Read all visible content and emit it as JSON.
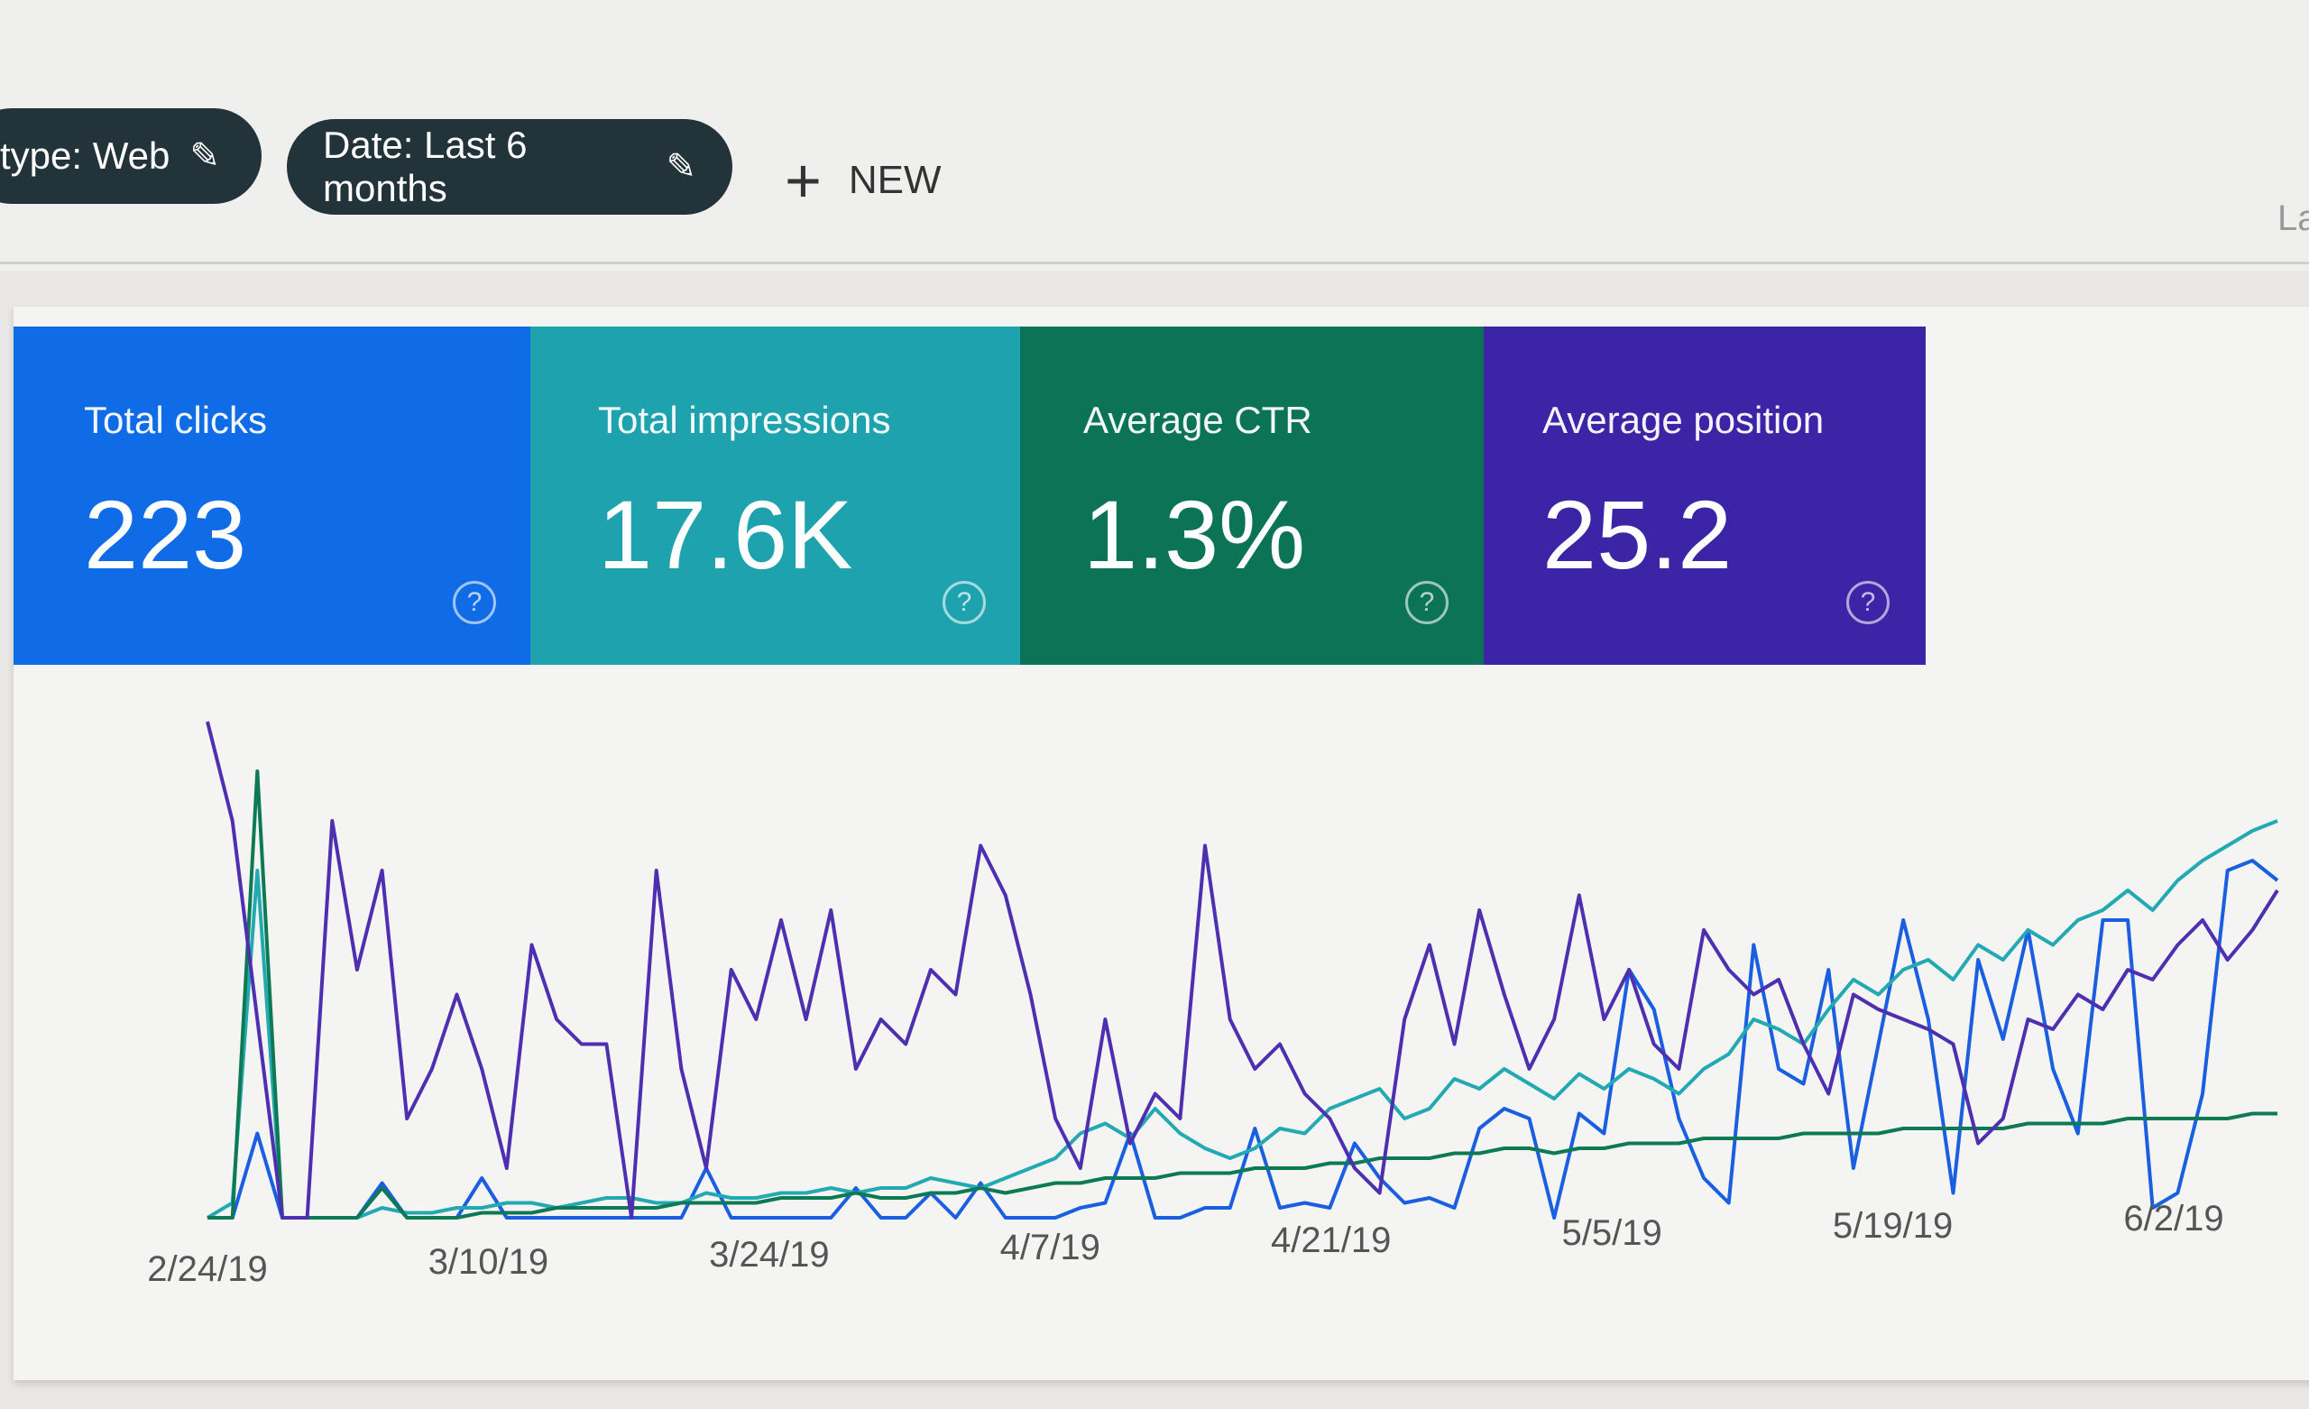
{
  "filters": [
    {
      "label": "type: Web",
      "icon": "pencil-icon"
    },
    {
      "label": "Date: Last 6 months",
      "icon": "pencil-icon"
    }
  ],
  "new_button": {
    "icon": "plus-icon",
    "label": "NEW"
  },
  "clipped_text": "La",
  "metrics": [
    {
      "label": "Total clicks",
      "value": "223",
      "color": "#0f6be6"
    },
    {
      "label": "Total impressions",
      "value": "17.6K",
      "color": "#1ea3ae"
    },
    {
      "label": "Average CTR",
      "value": "1.3%",
      "color": "#0c7456"
    },
    {
      "label": "Average position",
      "value": "25.2",
      "color": "#3c24a6"
    }
  ],
  "help_icon": "?",
  "chart_data": {
    "type": "line",
    "x_tick_labels": [
      "2/24/19",
      "3/10/19",
      "3/24/19",
      "4/7/19",
      "4/21/19",
      "5/5/19",
      "5/19/19",
      "6/2/19"
    ],
    "grid": false,
    "legend": "none",
    "series": [
      {
        "key": "clicks",
        "color": "#1a5fe0",
        "values": [
          0,
          0,
          17,
          0,
          0,
          0,
          0,
          7,
          0,
          0,
          0,
          8,
          0,
          0,
          0,
          0,
          0,
          0,
          0,
          0,
          10,
          0,
          0,
          0,
          0,
          0,
          6,
          0,
          0,
          5,
          0,
          7,
          0,
          0,
          0,
          2,
          3,
          17,
          0,
          0,
          2,
          2,
          18,
          2,
          3,
          2,
          15,
          8,
          3,
          4,
          2,
          18,
          22,
          20,
          0,
          21,
          17,
          50,
          42,
          20,
          8,
          3,
          55,
          30,
          27,
          50,
          10,
          35,
          60,
          40,
          5,
          52,
          36,
          58,
          30,
          17,
          60,
          60,
          2,
          5,
          25,
          70,
          72,
          68
        ]
      },
      {
        "key": "impressions",
        "color": "#23a9b2",
        "values": [
          0,
          3,
          70,
          0,
          0,
          0,
          0,
          2,
          1,
          1,
          2,
          2,
          3,
          3,
          2,
          3,
          4,
          4,
          3,
          3,
          5,
          4,
          4,
          5,
          5,
          6,
          5,
          6,
          6,
          8,
          7,
          6,
          8,
          10,
          12,
          17,
          19,
          16,
          22,
          17,
          14,
          12,
          14,
          18,
          17,
          22,
          24,
          26,
          20,
          22,
          28,
          26,
          30,
          27,
          24,
          29,
          26,
          30,
          28,
          25,
          30,
          33,
          40,
          38,
          35,
          42,
          48,
          45,
          50,
          52,
          48,
          55,
          52,
          58,
          55,
          60,
          62,
          66,
          62,
          68,
          72,
          75,
          78,
          80
        ]
      },
      {
        "key": "ctr",
        "color": "#0e7a55",
        "values": [
          0,
          0,
          90,
          0,
          0,
          0,
          0,
          6,
          0,
          0,
          0,
          1,
          1,
          1,
          2,
          2,
          2,
          2,
          2,
          3,
          3,
          3,
          3,
          4,
          4,
          4,
          5,
          4,
          4,
          5,
          5,
          6,
          5,
          6,
          7,
          7,
          8,
          8,
          8,
          9,
          9,
          9,
          10,
          10,
          10,
          11,
          11,
          12,
          12,
          12,
          13,
          13,
          14,
          14,
          13,
          14,
          14,
          15,
          15,
          15,
          16,
          16,
          16,
          16,
          17,
          17,
          17,
          17,
          18,
          18,
          18,
          18,
          18,
          19,
          19,
          19,
          19,
          20,
          20,
          20,
          20,
          20,
          21,
          21
        ]
      },
      {
        "key": "position",
        "color": "#4d2fb0",
        "values": [
          100,
          80,
          40,
          0,
          0,
          80,
          50,
          70,
          20,
          30,
          45,
          30,
          10,
          55,
          40,
          35,
          35,
          0,
          70,
          30,
          10,
          50,
          40,
          60,
          40,
          62,
          30,
          40,
          35,
          50,
          45,
          75,
          65,
          45,
          20,
          10,
          40,
          15,
          25,
          20,
          75,
          40,
          30,
          35,
          25,
          20,
          10,
          5,
          40,
          55,
          35,
          62,
          45,
          30,
          40,
          65,
          40,
          50,
          35,
          30,
          58,
          50,
          45,
          48,
          35,
          25,
          45,
          42,
          40,
          38,
          35,
          15,
          20,
          40,
          38,
          45,
          42,
          50,
          48,
          55,
          60,
          52,
          58,
          66
        ]
      }
    ]
  }
}
